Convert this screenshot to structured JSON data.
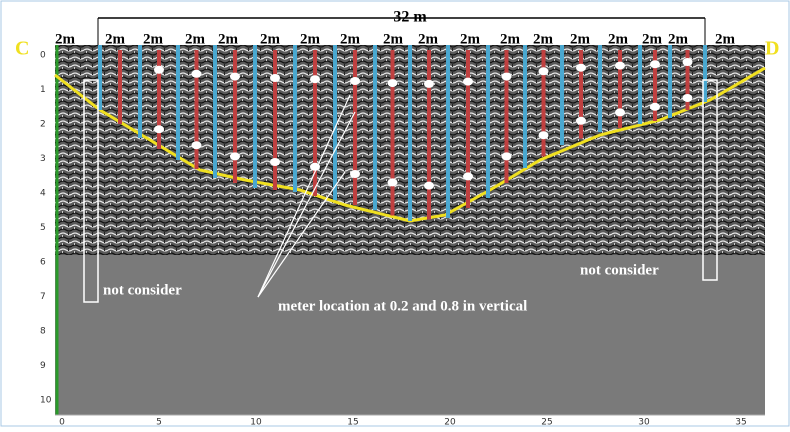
{
  "header": {
    "span": "32 m",
    "left_end": "C",
    "right_end": "D"
  },
  "segments": [
    "2m",
    "2m",
    "2m",
    "2m",
    "2m",
    "2m",
    "2m",
    "2m",
    "2m",
    "2m",
    "2m",
    "2m",
    "2m",
    "2m",
    "2m",
    "2m",
    "2m",
    "2m"
  ],
  "depth_axis": [
    "0",
    "1",
    "2",
    "3",
    "4",
    "5",
    "6",
    "7",
    "8",
    "9",
    "10"
  ],
  "distance_axis": [
    "0",
    "5",
    "10",
    "15",
    "20",
    "25",
    "30",
    "35"
  ],
  "annotations": {
    "left_excluded": "not consider",
    "right_excluded": "not consider",
    "meters": "meter location at 0.2 and 0.8 in vertical"
  }
}
